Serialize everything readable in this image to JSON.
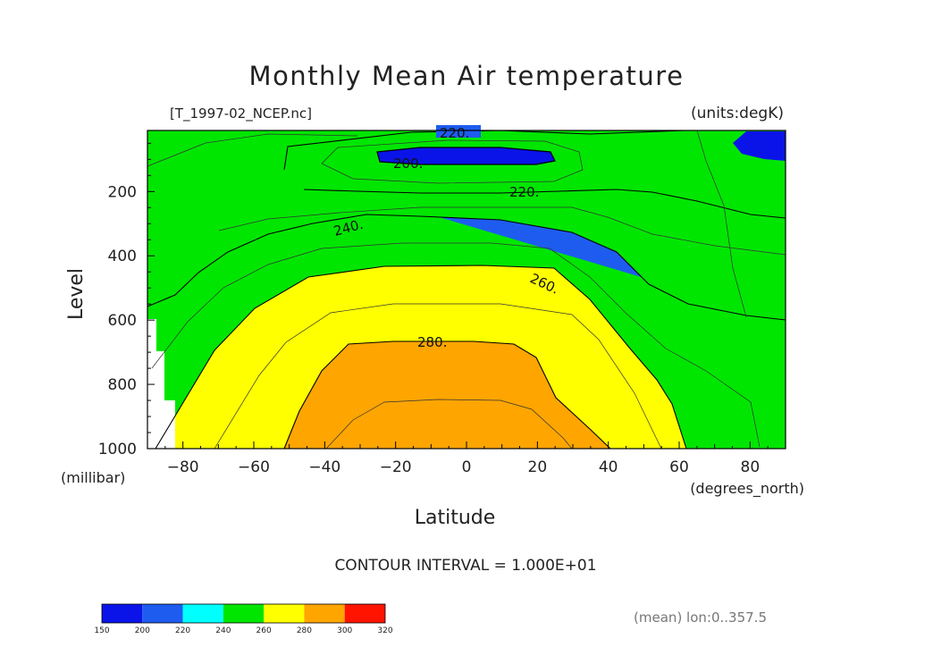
{
  "chart_data": {
    "type": "contour",
    "title": "Monthly Mean Air temperature",
    "file_label": "[T_1997-02_NCEP.nc]",
    "units_label": "(units:degK)",
    "xlabel": "Latitude",
    "x_units": "(degrees_north)",
    "ylabel": "Level",
    "y_units": "(millibar)",
    "xlim": [
      -90,
      90
    ],
    "ylim": [
      1000,
      10
    ],
    "x_ticks": [
      -80,
      -60,
      -40,
      -20,
      0,
      20,
      40,
      60,
      80
    ],
    "y_ticks": [
      1000,
      800,
      600,
      400,
      200
    ],
    "contour_interval_text": "CONTOUR INTERVAL = 1.000E+01",
    "averaging_text": "(mean) lon:0..357.5",
    "contour_labels": [
      "220.",
      "200.",
      "220.",
      "240.",
      "260.",
      "280."
    ],
    "colorbar": {
      "levels": [
        150,
        200,
        220,
        240,
        260,
        280,
        300,
        320
      ],
      "colors": [
        "#0a14e8",
        "#1e5cf0",
        "#00ffff",
        "#00e600",
        "#ffff00",
        "#ffa500",
        "#ff1400"
      ]
    }
  }
}
